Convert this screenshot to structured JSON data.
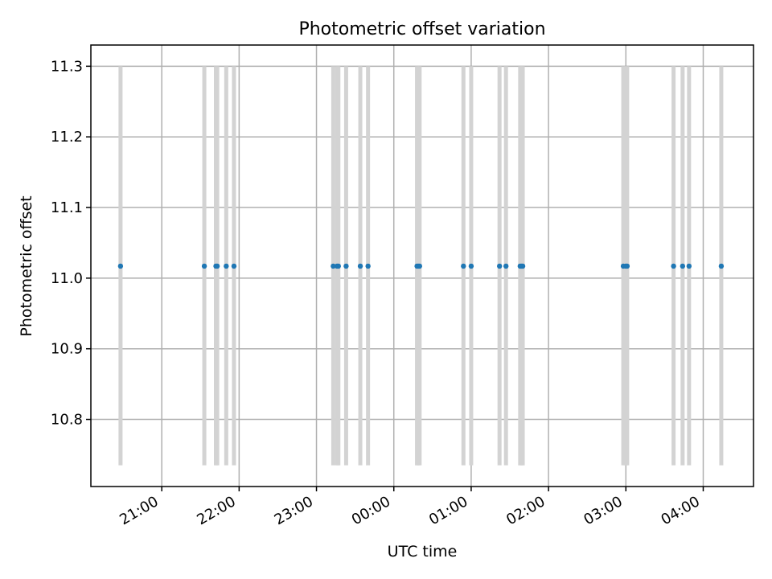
{
  "chart_data": {
    "type": "scatter",
    "title": "Photometric offset variation",
    "xlabel": "UTC time",
    "ylabel": "Photometric offset",
    "x_axis_type": "datetime",
    "xlim": [
      "2000-01-01T20:05",
      "2000-01-02T04:39"
    ],
    "ylim": [
      10.705,
      11.33
    ],
    "x_ticks": [
      "21:00",
      "22:00",
      "23:00",
      "00:00",
      "01:00",
      "02:00",
      "03:00",
      "04:00"
    ],
    "x_tick_values": [
      "2000-01-01T21:00",
      "2000-01-01T22:00",
      "2000-01-01T23:00",
      "2000-01-02T00:00",
      "2000-01-02T01:00",
      "2000-01-02T02:00",
      "2000-01-02T03:00",
      "2000-01-02T04:00"
    ],
    "y_ticks": [
      10.8,
      10.9,
      11.0,
      11.1,
      11.2,
      11.3
    ],
    "y_tick_labels": [
      "10.8",
      "10.9",
      "11.0",
      "11.1",
      "11.2",
      "11.3"
    ],
    "grid": true,
    "series": [
      {
        "color": "#1f77b4",
        "error_color": "#d3d3d3",
        "points": [
          {
            "x": "2000-01-01T20:28",
            "y": 11.017,
            "ylow": 10.735,
            "yhigh": 11.3
          },
          {
            "x": "2000-01-01T21:33",
            "y": 11.017,
            "ylow": 10.735,
            "yhigh": 11.3
          },
          {
            "x": "2000-01-01T21:42",
            "y": 11.017,
            "ylow": 10.735,
            "yhigh": 11.3
          },
          {
            "x": "2000-01-01T21:43",
            "y": 11.017,
            "ylow": 10.735,
            "yhigh": 11.3
          },
          {
            "x": "2000-01-01T21:50",
            "y": 11.017,
            "ylow": 10.735,
            "yhigh": 11.3
          },
          {
            "x": "2000-01-01T21:56",
            "y": 11.017,
            "ylow": 10.735,
            "yhigh": 11.3
          },
          {
            "x": "2000-01-01T23:13",
            "y": 11.017,
            "ylow": 10.735,
            "yhigh": 11.3
          },
          {
            "x": "2000-01-01T23:16",
            "y": 11.017,
            "ylow": 10.735,
            "yhigh": 11.3
          },
          {
            "x": "2000-01-01T23:17",
            "y": 11.017,
            "ylow": 10.735,
            "yhigh": 11.3
          },
          {
            "x": "2000-01-01T23:23",
            "y": 11.017,
            "ylow": 10.735,
            "yhigh": 11.3
          },
          {
            "x": "2000-01-01T23:34",
            "y": 11.017,
            "ylow": 10.735,
            "yhigh": 11.3
          },
          {
            "x": "2000-01-01T23:40",
            "y": 11.017,
            "ylow": 10.735,
            "yhigh": 11.3
          },
          {
            "x": "2000-01-02T00:18",
            "y": 11.017,
            "ylow": 10.735,
            "yhigh": 11.3
          },
          {
            "x": "2000-01-02T00:19",
            "y": 11.017,
            "ylow": 10.735,
            "yhigh": 11.3
          },
          {
            "x": "2000-01-02T00:20",
            "y": 11.017,
            "ylow": 10.735,
            "yhigh": 11.3
          },
          {
            "x": "2000-01-02T00:54",
            "y": 11.017,
            "ylow": 10.735,
            "yhigh": 11.3
          },
          {
            "x": "2000-01-02T01:00",
            "y": 11.017,
            "ylow": 10.735,
            "yhigh": 11.3
          },
          {
            "x": "2000-01-02T01:22",
            "y": 11.017,
            "ylow": 10.735,
            "yhigh": 11.3
          },
          {
            "x": "2000-01-02T01:27",
            "y": 11.017,
            "ylow": 10.735,
            "yhigh": 11.3
          },
          {
            "x": "2000-01-02T01:38",
            "y": 11.017,
            "ylow": 10.735,
            "yhigh": 11.3
          },
          {
            "x": "2000-01-02T01:39",
            "y": 11.017,
            "ylow": 10.735,
            "yhigh": 11.3
          },
          {
            "x": "2000-01-02T01:40",
            "y": 11.017,
            "ylow": 10.735,
            "yhigh": 11.3
          },
          {
            "x": "2000-01-02T02:58",
            "y": 11.017,
            "ylow": 10.735,
            "yhigh": 11.3
          },
          {
            "x": "2000-01-02T03:00",
            "y": 11.017,
            "ylow": 10.735,
            "yhigh": 11.3
          },
          {
            "x": "2000-01-02T03:01",
            "y": 11.017,
            "ylow": 10.735,
            "yhigh": 11.3
          },
          {
            "x": "2000-01-02T03:37",
            "y": 11.017,
            "ylow": 10.735,
            "yhigh": 11.3
          },
          {
            "x": "2000-01-02T03:44",
            "y": 11.017,
            "ylow": 10.735,
            "yhigh": 11.3
          },
          {
            "x": "2000-01-02T03:49",
            "y": 11.017,
            "ylow": 10.735,
            "yhigh": 11.3
          },
          {
            "x": "2000-01-02T04:14",
            "y": 11.017,
            "ylow": 10.735,
            "yhigh": 11.3
          }
        ]
      }
    ]
  }
}
